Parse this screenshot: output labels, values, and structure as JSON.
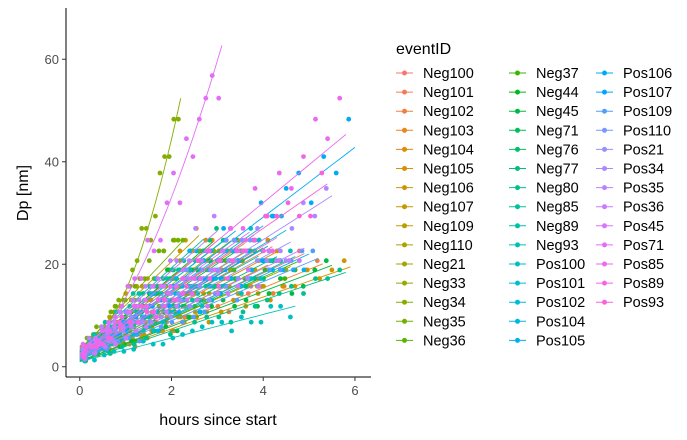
{
  "chart_data": {
    "type": "scatter",
    "title": "",
    "xlabel": "hours since start",
    "ylabel": "Dp [nm]",
    "xlim": [
      -0.3,
      6.35
    ],
    "ylim": [
      -2,
      70
    ],
    "xticks": [
      0,
      2,
      4,
      6
    ],
    "yticks": [
      0,
      20,
      40,
      60
    ],
    "grid": false,
    "legend_title": "eventID",
    "legend_position": "right",
    "series": [
      {
        "name": "Neg100",
        "color": "#F8766D",
        "slope": 4.2,
        "tmax": 4.9,
        "y0": 1.5
      },
      {
        "name": "Neg101",
        "color": "#F37B59",
        "slope": 5.1,
        "tmax": 4.2,
        "y0": 2.0
      },
      {
        "name": "Neg102",
        "color": "#ED8141",
        "slope": 3.6,
        "tmax": 5.3,
        "y0": 1.0
      },
      {
        "name": "Neg103",
        "color": "#E7861B",
        "slope": 6.0,
        "tmax": 3.6,
        "y0": 2.5
      },
      {
        "name": "Neg104",
        "color": "#E08B00",
        "slope": 4.8,
        "tmax": 4.4,
        "y0": 1.8
      },
      {
        "name": "Neg105",
        "color": "#D89000",
        "slope": 7.2,
        "tmax": 3.1,
        "y0": 3.0
      },
      {
        "name": "Neg106",
        "color": "#CF9400",
        "slope": 3.1,
        "tmax": 5.9,
        "y0": 1.2
      },
      {
        "name": "Neg107",
        "color": "#C59900",
        "slope": 8.5,
        "tmax": 2.6,
        "y0": 3.5
      },
      {
        "name": "Neg109",
        "color": "#BB9D00",
        "slope": 4.5,
        "tmax": 4.1,
        "y0": 1.4
      },
      {
        "name": "Neg110",
        "color": "#AFA100",
        "slope": 5.6,
        "tmax": 3.7,
        "y0": 2.2
      },
      {
        "name": "Neg21",
        "color": "#A3A500",
        "slope": 3.9,
        "tmax": 4.6,
        "y0": 1.6
      },
      {
        "name": "Neg33",
        "color": "#95A900",
        "slope": 6.6,
        "tmax": 3.3,
        "y0": 2.8
      },
      {
        "name": "Neg34",
        "color": "#85AD00",
        "slope": 22,
        "tmax": 2.2,
        "y0": 4.0,
        "curve": 1.9
      },
      {
        "name": "Neg35",
        "color": "#72B000",
        "slope": 9.5,
        "tmax": 2.3,
        "y0": 3.2
      },
      {
        "name": "Neg36",
        "color": "#5BB300",
        "slope": 5.3,
        "tmax": 4.0,
        "y0": 2.0
      },
      {
        "name": "Neg37",
        "color": "#39B600",
        "slope": 4.0,
        "tmax": 4.8,
        "y0": 1.5
      },
      {
        "name": "Neg44",
        "color": "#00B81F",
        "slope": 7.5,
        "tmax": 2.9,
        "y0": 2.6
      },
      {
        "name": "Neg45",
        "color": "#00BA42",
        "slope": 3.4,
        "tmax": 5.5,
        "y0": 1.1
      },
      {
        "name": "Neg71",
        "color": "#00BC59",
        "slope": 5.9,
        "tmax": 3.5,
        "y0": 2.4
      },
      {
        "name": "Neg76",
        "color": "#00BE6C",
        "slope": 4.6,
        "tmax": 4.3,
        "y0": 1.7
      },
      {
        "name": "Neg77",
        "color": "#00BF7D",
        "slope": 6.9,
        "tmax": 3.2,
        "y0": 2.9
      },
      {
        "name": "Neg80",
        "color": "#00C08C",
        "slope": 3.0,
        "tmax": 5.8,
        "y0": 1.0
      },
      {
        "name": "Neg85",
        "color": "#00C19A",
        "slope": 5.0,
        "tmax": 3.9,
        "y0": 2.1
      },
      {
        "name": "Neg89",
        "color": "#00C1A7",
        "slope": 8.0,
        "tmax": 2.7,
        "y0": 3.3
      },
      {
        "name": "Neg93",
        "color": "#00C0B4",
        "slope": 4.3,
        "tmax": 4.7,
        "y0": 1.3
      },
      {
        "name": "Pos100",
        "color": "#00BFC0",
        "slope": 2.3,
        "tmax": 4.7,
        "y0": 1.0
      },
      {
        "name": "Pos101",
        "color": "#00BDCC",
        "slope": 6.3,
        "tmax": 4.0,
        "y0": 2.3
      },
      {
        "name": "Pos102",
        "color": "#00BAD7",
        "slope": 5.5,
        "tmax": 4.5,
        "y0": 1.9
      },
      {
        "name": "Pos104",
        "color": "#00B6E2",
        "slope": 7.0,
        "tmax": 3.4,
        "y0": 2.7
      },
      {
        "name": "Pos105",
        "color": "#00B1EC",
        "slope": 4.1,
        "tmax": 5.0,
        "y0": 1.5
      },
      {
        "name": "Pos106",
        "color": "#00ABF5",
        "slope": 6.8,
        "tmax": 6.0,
        "y0": 2.0
      },
      {
        "name": "Pos107",
        "color": "#00A4FD",
        "slope": 5.2,
        "tmax": 4.1,
        "y0": 2.2
      },
      {
        "name": "Pos109",
        "color": "#529EFF",
        "slope": 3.8,
        "tmax": 5.2,
        "y0": 1.4
      },
      {
        "name": "Pos110",
        "color": "#7997FF",
        "slope": 6.1,
        "tmax": 3.8,
        "y0": 2.5
      },
      {
        "name": "Pos21",
        "color": "#9590FF",
        "slope": 4.9,
        "tmax": 4.6,
        "y0": 1.8
      },
      {
        "name": "Pos34",
        "color": "#AA89FF",
        "slope": 5.7,
        "tmax": 5.5,
        "y0": 2.0
      },
      {
        "name": "Pos35",
        "color": "#BC81FF",
        "slope": 7.8,
        "tmax": 3.0,
        "y0": 3.1
      },
      {
        "name": "Pos36",
        "color": "#CB7AFF",
        "slope": 4.4,
        "tmax": 4.9,
        "y0": 1.6
      },
      {
        "name": "Pos45",
        "color": "#D874FD",
        "slope": 6.4,
        "tmax": 3.7,
        "y0": 2.6
      },
      {
        "name": "Pos71",
        "color": "#E36EF6",
        "slope": 19,
        "tmax": 3.1,
        "y0": 3.8,
        "curve": 1.6
      },
      {
        "name": "Pos85",
        "color": "#EC69EF",
        "slope": 7.4,
        "tmax": 5.8,
        "y0": 2.4
      },
      {
        "name": "Pos89",
        "color": "#F365E6",
        "slope": 5.4,
        "tmax": 4.3,
        "y0": 2.0
      },
      {
        "name": "Pos93",
        "color": "#F962DD",
        "slope": 6.2,
        "tmax": 5.4,
        "y0": 2.2
      }
    ]
  }
}
